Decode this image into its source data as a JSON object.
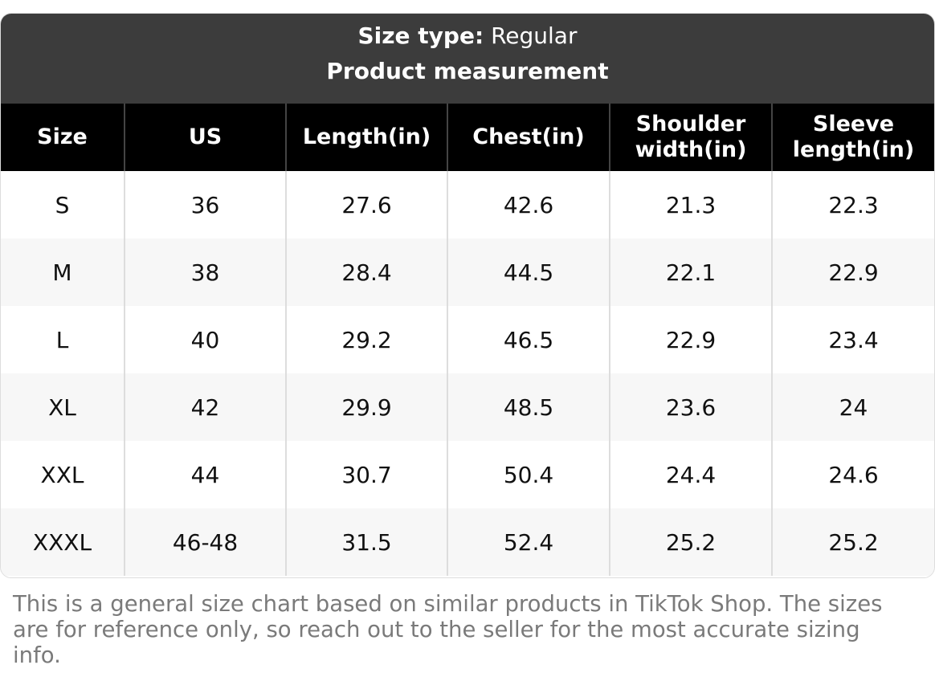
{
  "header": {
    "size_type_label": "Size type:",
    "size_type_value": "Regular",
    "title": "Product measurement"
  },
  "table": {
    "columns": [
      "Size",
      "US",
      "Length(in)",
      "Chest(in)",
      "Shoulder width(in)",
      "Sleeve length(in)"
    ],
    "rows": [
      [
        "S",
        "36",
        "27.6",
        "42.6",
        "21.3",
        "22.3"
      ],
      [
        "M",
        "38",
        "28.4",
        "44.5",
        "22.1",
        "22.9"
      ],
      [
        "L",
        "40",
        "29.2",
        "46.5",
        "22.9",
        "23.4"
      ],
      [
        "XL",
        "42",
        "29.9",
        "48.5",
        "23.6",
        "24"
      ],
      [
        "XXL",
        "44",
        "30.7",
        "50.4",
        "24.4",
        "24.6"
      ],
      [
        "XXXL",
        "46-48",
        "31.5",
        "52.4",
        "25.2",
        "25.2"
      ]
    ]
  },
  "footnote": "This is a general size chart based on similar products in TikTok Shop. The sizes are for reference only, so reach out to the seller for the most accurate sizing info.",
  "colors": {
    "header_bg": "#3c3c3c",
    "column_header_bg": "#000000",
    "alt_row_bg": "#f7f7f7",
    "footnote_text": "#7a7a7a"
  }
}
